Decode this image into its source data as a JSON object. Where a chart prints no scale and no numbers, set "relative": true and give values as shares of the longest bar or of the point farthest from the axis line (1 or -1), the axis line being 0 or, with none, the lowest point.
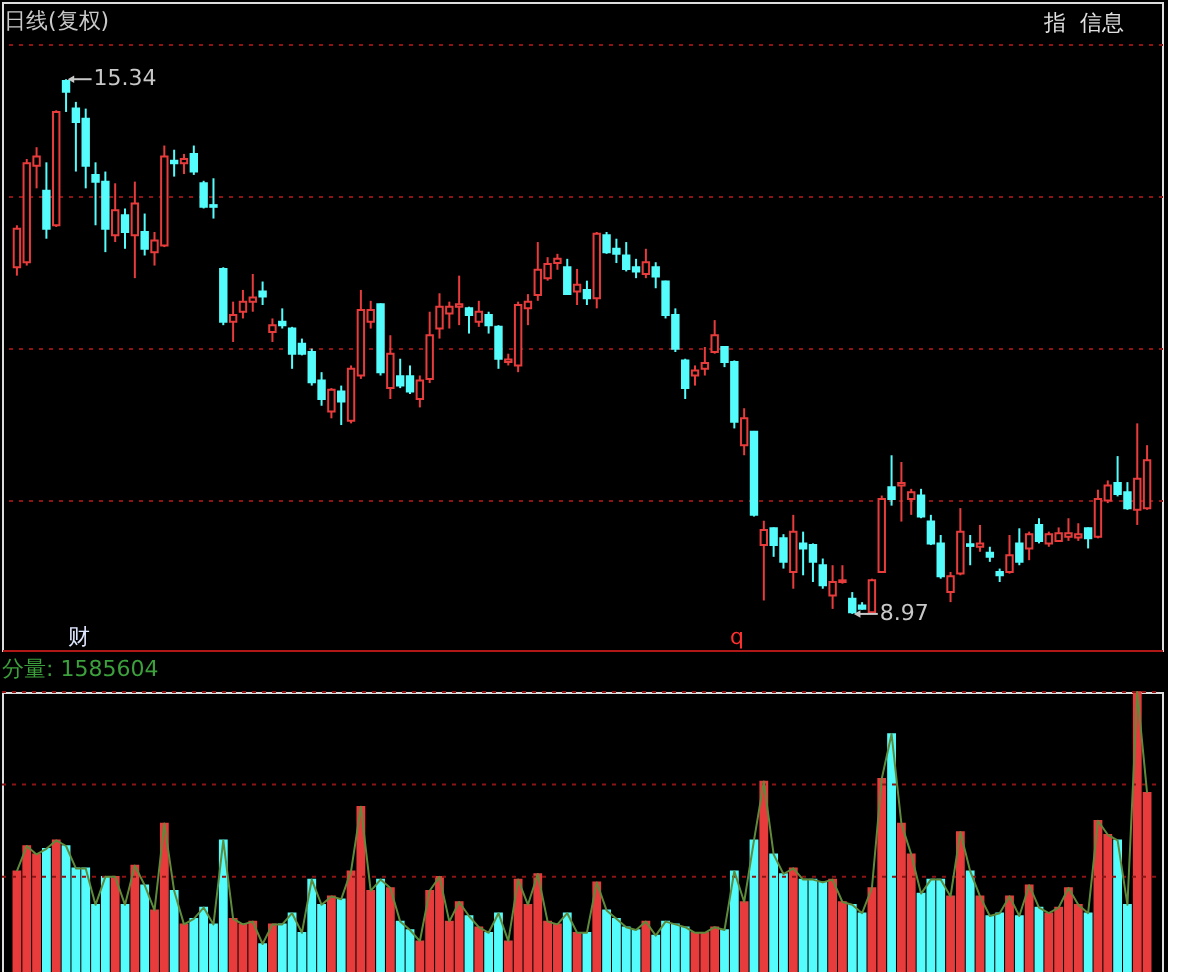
{
  "chart_data": [
    {
      "type": "candlestick",
      "title": "日线(复权)",
      "categories": [
        null,
        null,
        null,
        null,
        null,
        null,
        null,
        null,
        null,
        null,
        null,
        null,
        null,
        null,
        null,
        null,
        null,
        null,
        null,
        null,
        null,
        null,
        null,
        null,
        null,
        null,
        null,
        null,
        null,
        null,
        null,
        null,
        null,
        null,
        null,
        null,
        null,
        null,
        null,
        null,
        null,
        null,
        null,
        null,
        null,
        null,
        null,
        null,
        null,
        null,
        null,
        null,
        null,
        null,
        null,
        null,
        null,
        null,
        null,
        null,
        null,
        null,
        null,
        null,
        null,
        null,
        null,
        null,
        null,
        null,
        null,
        null,
        null,
        null,
        null,
        null,
        null,
        null,
        null,
        null,
        null,
        null,
        null,
        null,
        null,
        null,
        null,
        null,
        null,
        null,
        null,
        null,
        null,
        null,
        null,
        null,
        null,
        null,
        null,
        null,
        null,
        null,
        null,
        null,
        null,
        null,
        null,
        null,
        null,
        null,
        null,
        null,
        null,
        null,
        null,
        null
      ],
      "ohlc": [
        [
          13.1,
          13.6,
          13.0,
          13.56
        ],
        [
          13.16,
          14.39,
          13.12,
          14.34
        ],
        [
          14.31,
          14.53,
          14.04,
          14.42
        ],
        [
          14.01,
          14.35,
          13.44,
          13.56
        ],
        [
          13.6,
          14.97,
          13.58,
          14.95
        ],
        [
          15.32,
          15.34,
          14.95,
          15.19
        ],
        [
          14.99,
          15.07,
          14.24,
          14.83
        ],
        [
          14.87,
          14.99,
          14.04,
          14.31
        ],
        [
          14.2,
          14.35,
          13.6,
          14.12
        ],
        [
          14.12,
          14.24,
          13.28,
          13.56
        ],
        [
          13.48,
          14.1,
          13.4,
          13.78
        ],
        [
          13.72,
          13.8,
          13.32,
          13.52
        ],
        [
          13.48,
          14.12,
          12.97,
          13.86
        ],
        [
          13.52,
          13.74,
          13.24,
          13.32
        ],
        [
          13.28,
          13.52,
          13.12,
          13.42
        ],
        [
          13.36,
          14.55,
          13.34,
          14.42
        ],
        [
          14.37,
          14.5,
          14.18,
          14.34
        ],
        [
          14.34,
          14.45,
          14.21,
          14.39
        ],
        [
          14.45,
          14.55,
          14.2,
          14.24
        ],
        [
          14.1,
          14.13,
          13.8,
          13.82
        ],
        [
          13.84,
          14.16,
          13.68,
          13.82
        ],
        [
          13.08,
          13.1,
          12.41,
          12.45
        ],
        [
          12.45,
          12.69,
          12.21,
          12.53
        ],
        [
          12.57,
          12.83,
          12.49,
          12.69
        ],
        [
          12.69,
          13.02,
          12.57,
          12.74
        ],
        [
          12.81,
          12.93,
          12.65,
          12.75
        ],
        [
          12.33,
          12.49,
          12.21,
          12.41
        ],
        [
          12.45,
          12.61,
          12.37,
          12.41
        ],
        [
          12.37,
          12.39,
          11.89,
          12.07
        ],
        [
          12.19,
          12.25,
          12.05,
          12.07
        ],
        [
          12.09,
          12.13,
          11.69,
          11.73
        ],
        [
          11.75,
          11.85,
          11.45,
          11.53
        ],
        [
          11.38,
          11.66,
          11.3,
          11.64
        ],
        [
          11.62,
          11.69,
          11.22,
          11.5
        ],
        [
          11.27,
          11.93,
          11.24,
          11.89
        ],
        [
          11.81,
          12.83,
          11.77,
          12.59
        ],
        [
          12.45,
          12.7,
          12.37,
          12.59
        ],
        [
          12.66,
          12.67,
          11.81,
          11.85
        ],
        [
          11.66,
          12.29,
          11.53,
          12.07
        ],
        [
          11.8,
          12.01,
          11.66,
          11.69
        ],
        [
          11.8,
          11.93,
          11.59,
          11.62
        ],
        [
          11.53,
          11.81,
          11.43,
          11.75
        ],
        [
          11.77,
          12.57,
          11.72,
          12.29
        ],
        [
          12.37,
          12.79,
          12.25,
          12.63
        ],
        [
          12.55,
          12.69,
          12.37,
          12.63
        ],
        [
          12.63,
          13.0,
          12.41,
          12.66
        ],
        [
          12.61,
          12.63,
          12.31,
          12.53
        ],
        [
          12.45,
          12.7,
          12.39,
          12.57
        ],
        [
          12.53,
          12.57,
          12.31,
          12.41
        ],
        [
          12.39,
          12.41,
          11.89,
          12.01
        ],
        [
          11.97,
          12.07,
          11.93,
          12.0
        ],
        [
          11.93,
          12.69,
          11.85,
          12.65
        ],
        [
          12.61,
          12.78,
          12.41,
          12.69
        ],
        [
          12.77,
          13.4,
          12.7,
          13.07
        ],
        [
          12.97,
          13.22,
          12.94,
          13.14
        ],
        [
          13.15,
          13.26,
          13.07,
          13.2
        ],
        [
          13.1,
          13.2,
          12.77,
          12.78
        ],
        [
          12.81,
          13.08,
          12.65,
          12.89
        ],
        [
          12.83,
          12.94,
          12.65,
          12.73
        ],
        [
          12.73,
          13.52,
          12.61,
          13.5
        ],
        [
          13.48,
          13.52,
          13.26,
          13.28
        ],
        [
          13.32,
          13.44,
          13.15,
          13.26
        ],
        [
          13.24,
          13.4,
          13.05,
          13.08
        ],
        [
          13.1,
          13.2,
          12.97,
          13.05
        ],
        [
          13.02,
          13.32,
          12.97,
          13.16
        ],
        [
          13.1,
          13.16,
          12.85,
          12.99
        ],
        [
          12.93,
          12.94,
          12.49,
          12.53
        ],
        [
          12.53,
          12.61,
          12.09,
          12.13
        ],
        [
          11.99,
          12.01,
          11.53,
          11.66
        ],
        [
          11.81,
          11.93,
          11.69,
          11.87
        ],
        [
          11.89,
          12.15,
          11.81,
          11.96
        ],
        [
          12.09,
          12.47,
          12.07,
          12.29
        ],
        [
          12.15,
          12.16,
          11.91,
          11.97
        ],
        [
          11.97,
          11.99,
          11.18,
          11.26
        ],
        [
          10.98,
          11.42,
          10.86,
          11.3
        ],
        [
          11.14,
          11.15,
          10.13,
          10.15
        ],
        [
          9.79,
          10.08,
          9.13,
          9.97
        ],
        [
          9.99,
          10.0,
          9.65,
          9.79
        ],
        [
          9.87,
          9.92,
          9.51,
          9.59
        ],
        [
          9.47,
          10.15,
          9.27,
          9.95
        ],
        [
          9.81,
          9.95,
          9.43,
          9.75
        ],
        [
          9.79,
          9.81,
          9.35,
          9.59
        ],
        [
          9.55,
          9.63,
          9.27,
          9.31
        ],
        [
          9.19,
          9.55,
          9.03,
          9.35
        ],
        [
          9.35,
          9.55,
          9.33,
          9.37
        ],
        [
          9.15,
          9.23,
          8.97,
          8.99
        ],
        [
          9.07,
          9.11,
          9.02,
          9.03
        ],
        [
          8.99,
          9.39,
          8.98,
          9.37
        ],
        [
          9.47,
          10.38,
          9.46,
          10.34
        ],
        [
          10.48,
          10.86,
          10.26,
          10.34
        ],
        [
          10.5,
          10.78,
          10.07,
          10.53
        ],
        [
          10.34,
          10.46,
          10.15,
          10.42
        ],
        [
          10.38,
          10.46,
          10.11,
          10.13
        ],
        [
          10.07,
          10.15,
          9.79,
          9.81
        ],
        [
          9.81,
          9.91,
          9.39,
          9.42
        ],
        [
          9.23,
          9.47,
          9.11,
          9.42
        ],
        [
          9.45,
          10.23,
          9.43,
          9.95
        ],
        [
          9.8,
          9.91,
          9.55,
          9.78
        ],
        [
          9.77,
          10.03,
          9.71,
          9.81
        ],
        [
          9.7,
          9.77,
          9.59,
          9.65
        ],
        [
          9.47,
          9.51,
          9.35,
          9.43
        ],
        [
          9.47,
          9.91,
          9.45,
          9.67
        ],
        [
          9.81,
          9.99,
          9.55,
          9.59
        ],
        [
          9.75,
          9.95,
          9.61,
          9.92
        ],
        [
          10.03,
          10.11,
          9.81,
          9.84
        ],
        [
          9.81,
          9.95,
          9.77,
          9.92
        ],
        [
          9.84,
          10.0,
          9.83,
          9.93
        ],
        [
          9.89,
          10.11,
          9.84,
          9.93
        ],
        [
          9.88,
          10.05,
          9.84,
          9.92
        ],
        [
          9.99,
          10.0,
          9.75,
          9.87
        ],
        [
          9.89,
          10.45,
          9.87,
          10.34
        ],
        [
          10.32,
          10.56,
          10.29,
          10.5
        ],
        [
          10.53,
          10.85,
          10.37,
          10.4
        ],
        [
          10.42,
          10.54,
          10.21,
          10.23
        ],
        [
          10.21,
          11.24,
          10.03,
          10.58
        ],
        [
          10.23,
          10.98,
          10.21,
          10.8
        ]
      ],
      "colors": [
        "#e83c3c",
        "#e83c3c",
        "#e83c3c",
        "#54fcfc",
        "#e83c3c",
        "#54fcfc",
        "#54fcfc",
        "#54fcfc",
        "#54fcfc",
        "#54fcfc",
        "#e83c3c",
        "#54fcfc",
        "#e83c3c",
        "#54fcfc",
        "#e83c3c",
        "#e83c3c",
        "#54fcfc",
        "#e83c3c",
        "#54fcfc",
        "#54fcfc",
        "#54fcfc",
        "#54fcfc",
        "#e83c3c",
        "#e83c3c",
        "#e83c3c",
        "#54fcfc",
        "#e83c3c",
        "#54fcfc",
        "#54fcfc",
        "#54fcfc",
        "#54fcfc",
        "#54fcfc",
        "#e83c3c",
        "#54fcfc",
        "#e83c3c",
        "#e83c3c",
        "#e83c3c",
        "#54fcfc",
        "#e83c3c",
        "#54fcfc",
        "#54fcfc",
        "#e83c3c",
        "#e83c3c",
        "#e83c3c",
        "#e83c3c",
        "#e83c3c",
        "#54fcfc",
        "#e83c3c",
        "#54fcfc",
        "#54fcfc",
        "#e83c3c",
        "#e83c3c",
        "#e83c3c",
        "#e83c3c",
        "#e83c3c",
        "#e83c3c",
        "#54fcfc",
        "#e83c3c",
        "#54fcfc",
        "#e83c3c",
        "#54fcfc",
        "#54fcfc",
        "#54fcfc",
        "#54fcfc",
        "#e83c3c",
        "#54fcfc",
        "#54fcfc",
        "#54fcfc",
        "#54fcfc",
        "#e83c3c",
        "#e83c3c",
        "#e83c3c",
        "#54fcfc",
        "#54fcfc",
        "#e83c3c",
        "#54fcfc",
        "#e83c3c",
        "#54fcfc",
        "#54fcfc",
        "#e83c3c",
        "#54fcfc",
        "#54fcfc",
        "#54fcfc",
        "#e83c3c",
        "#e83c3c",
        "#54fcfc",
        "#54fcfc",
        "#e83c3c",
        "#e83c3c",
        "#54fcfc",
        "#e83c3c",
        "#e83c3c",
        "#54fcfc",
        "#54fcfc",
        "#54fcfc",
        "#e83c3c",
        "#e83c3c",
        "#54fcfc",
        "#e83c3c",
        "#54fcfc",
        "#54fcfc",
        "#e83c3c",
        "#54fcfc",
        "#e83c3c",
        "#54fcfc",
        "#e83c3c",
        "#e83c3c",
        "#e83c3c",
        "#e83c3c",
        "#54fcfc",
        "#e83c3c",
        "#e83c3c",
        "#54fcfc",
        "#54fcfc",
        "#e83c3c",
        "#e83c3c"
      ],
      "ylim": [
        8.54,
        16.26
      ],
      "yticks": [
        {
          "value": 10.33,
          "label": null
        },
        {
          "value": 12.14,
          "label": null
        },
        {
          "value": 13.95,
          "label": null
        },
        {
          "value": 15.77,
          "label": null
        }
      ],
      "grid": "y",
      "annotations": [
        "15.34",
        "8.97",
        "财",
        "q",
        "指",
        "信息"
      ]
    },
    {
      "type": "bar",
      "title": "分量: 1585604",
      "relative": true,
      "categories": [
        null,
        null,
        null,
        null,
        null,
        null,
        null,
        null,
        null,
        null,
        null,
        null,
        null,
        null,
        null,
        null,
        null,
        null,
        null,
        null,
        null,
        null,
        null,
        null,
        null,
        null,
        null,
        null,
        null,
        null,
        null,
        null,
        null,
        null,
        null,
        null,
        null,
        null,
        null,
        null,
        null,
        null,
        null,
        null,
        null,
        null,
        null,
        null,
        null,
        null,
        null,
        null,
        null,
        null,
        null,
        null,
        null,
        null,
        null,
        null,
        null,
        null,
        null,
        null,
        null,
        null,
        null,
        null,
        null,
        null,
        null,
        null,
        null,
        null,
        null,
        null,
        null,
        null,
        null,
        null,
        null,
        null,
        null,
        null,
        null,
        null,
        null,
        null,
        null,
        null,
        null,
        null,
        null,
        null,
        null,
        null,
        null,
        null,
        null,
        null,
        null,
        null,
        null,
        null,
        null,
        null,
        null,
        null,
        null,
        null,
        null,
        null,
        null,
        null,
        null,
        null
      ],
      "series": [
        {
          "type": "bar",
          "values": [
            0.36,
            0.45,
            0.42,
            0.44,
            0.47,
            0.45,
            0.37,
            0.37,
            0.24,
            0.34,
            0.34,
            0.24,
            0.38,
            0.31,
            0.22,
            0.53,
            0.29,
            0.17,
            0.19,
            0.23,
            0.17,
            0.47,
            0.19,
            0.17,
            0.18,
            0.1,
            0.17,
            0.17,
            0.21,
            0.14,
            0.33,
            0.24,
            0.27,
            0.26,
            0.36,
            0.59,
            0.29,
            0.33,
            0.3,
            0.18,
            0.15,
            0.11,
            0.29,
            0.34,
            0.18,
            0.25,
            0.2,
            0.16,
            0.14,
            0.21,
            0.11,
            0.33,
            0.24,
            0.35,
            0.18,
            0.17,
            0.21,
            0.14,
            0.14,
            0.32,
            0.22,
            0.19,
            0.16,
            0.15,
            0.18,
            0.13,
            0.18,
            0.17,
            0.16,
            0.14,
            0.14,
            0.16,
            0.15,
            0.36,
            0.25,
            0.47,
            0.68,
            0.42,
            0.35,
            0.37,
            0.33,
            0.33,
            0.32,
            0.33,
            0.25,
            0.24,
            0.21,
            0.3,
            0.69,
            0.85,
            0.53,
            0.42,
            0.28,
            0.33,
            0.33,
            0.27,
            0.5,
            0.36,
            0.27,
            0.2,
            0.21,
            0.27,
            0.2,
            0.31,
            0.23,
            0.21,
            0.23,
            0.3,
            0.24,
            0.21,
            0.54,
            0.49,
            0.47,
            0.24,
            1,
            0.64
          ],
          "colors": [
            "#e83c3c",
            "#e83c3c",
            "#e83c3c",
            "#54fcfc",
            "#e83c3c",
            "#54fcfc",
            "#54fcfc",
            "#54fcfc",
            "#54fcfc",
            "#54fcfc",
            "#e83c3c",
            "#54fcfc",
            "#e83c3c",
            "#54fcfc",
            "#e83c3c",
            "#e83c3c",
            "#54fcfc",
            "#e83c3c",
            "#54fcfc",
            "#54fcfc",
            "#54fcfc",
            "#54fcfc",
            "#e83c3c",
            "#e83c3c",
            "#e83c3c",
            "#54fcfc",
            "#e83c3c",
            "#54fcfc",
            "#54fcfc",
            "#54fcfc",
            "#54fcfc",
            "#54fcfc",
            "#e83c3c",
            "#54fcfc",
            "#e83c3c",
            "#e83c3c",
            "#e83c3c",
            "#54fcfc",
            "#e83c3c",
            "#54fcfc",
            "#54fcfc",
            "#e83c3c",
            "#e83c3c",
            "#e83c3c",
            "#e83c3c",
            "#e83c3c",
            "#54fcfc",
            "#e83c3c",
            "#54fcfc",
            "#54fcfc",
            "#e83c3c",
            "#e83c3c",
            "#e83c3c",
            "#e83c3c",
            "#e83c3c",
            "#e83c3c",
            "#54fcfc",
            "#e83c3c",
            "#54fcfc",
            "#e83c3c",
            "#54fcfc",
            "#54fcfc",
            "#54fcfc",
            "#54fcfc",
            "#e83c3c",
            "#54fcfc",
            "#54fcfc",
            "#54fcfc",
            "#54fcfc",
            "#e83c3c",
            "#e83c3c",
            "#e83c3c",
            "#54fcfc",
            "#54fcfc",
            "#e83c3c",
            "#54fcfc",
            "#e83c3c",
            "#54fcfc",
            "#54fcfc",
            "#e83c3c",
            "#54fcfc",
            "#54fcfc",
            "#54fcfc",
            "#e83c3c",
            "#e83c3c",
            "#54fcfc",
            "#54fcfc",
            "#e83c3c",
            "#e83c3c",
            "#54fcfc",
            "#e83c3c",
            "#e83c3c",
            "#54fcfc",
            "#54fcfc",
            "#54fcfc",
            "#e83c3c",
            "#e83c3c",
            "#54fcfc",
            "#e83c3c",
            "#54fcfc",
            "#54fcfc",
            "#e83c3c",
            "#54fcfc",
            "#e83c3c",
            "#54fcfc",
            "#e83c3c",
            "#e83c3c",
            "#e83c3c",
            "#e83c3c",
            "#54fcfc",
            "#e83c3c",
            "#e83c3c",
            "#54fcfc",
            "#54fcfc",
            "#e83c3c",
            "#e83c3c"
          ]
        },
        {
          "type": "line",
          "color": "#5f8a3c",
          "values": [
            0.36,
            0.45,
            0.42,
            0.44,
            0.47,
            0.45,
            0.37,
            0.37,
            0.24,
            0.34,
            0.34,
            0.24,
            0.38,
            0.31,
            0.22,
            0.53,
            0.29,
            0.17,
            0.19,
            0.23,
            0.17,
            0.47,
            0.19,
            0.17,
            0.18,
            0.1,
            0.17,
            0.17,
            0.21,
            0.14,
            0.33,
            0.24,
            0.27,
            0.26,
            0.36,
            0.59,
            0.29,
            0.33,
            0.3,
            0.18,
            0.15,
            0.11,
            0.29,
            0.34,
            0.18,
            0.25,
            0.2,
            0.16,
            0.14,
            0.21,
            0.11,
            0.33,
            0.24,
            0.35,
            0.18,
            0.17,
            0.21,
            0.14,
            0.14,
            0.32,
            0.22,
            0.19,
            0.16,
            0.15,
            0.18,
            0.13,
            0.18,
            0.17,
            0.16,
            0.14,
            0.14,
            0.16,
            0.15,
            0.36,
            0.25,
            0.47,
            0.68,
            0.42,
            0.35,
            0.37,
            0.33,
            0.33,
            0.32,
            0.33,
            0.25,
            0.24,
            0.21,
            0.3,
            0.69,
            0.85,
            0.53,
            0.42,
            0.28,
            0.33,
            0.33,
            0.27,
            0.5,
            0.36,
            0.27,
            0.2,
            0.21,
            0.27,
            0.2,
            0.31,
            0.23,
            0.21,
            0.23,
            0.3,
            0.24,
            0.21,
            0.54,
            0.49,
            0.47,
            0.24,
            1,
            0.64
          ]
        }
      ],
      "ref_lines": [
        {
          "axis": "y",
          "value": 0.34,
          "color": "#8c1414",
          "line_style": "dotted"
        },
        {
          "axis": "y",
          "value": 0.67,
          "color": "#8c1414",
          "line_style": "dotted"
        },
        {
          "axis": "y",
          "value": 1,
          "color": "#8c1414",
          "line_style": "dotted"
        }
      ]
    }
  ]
}
